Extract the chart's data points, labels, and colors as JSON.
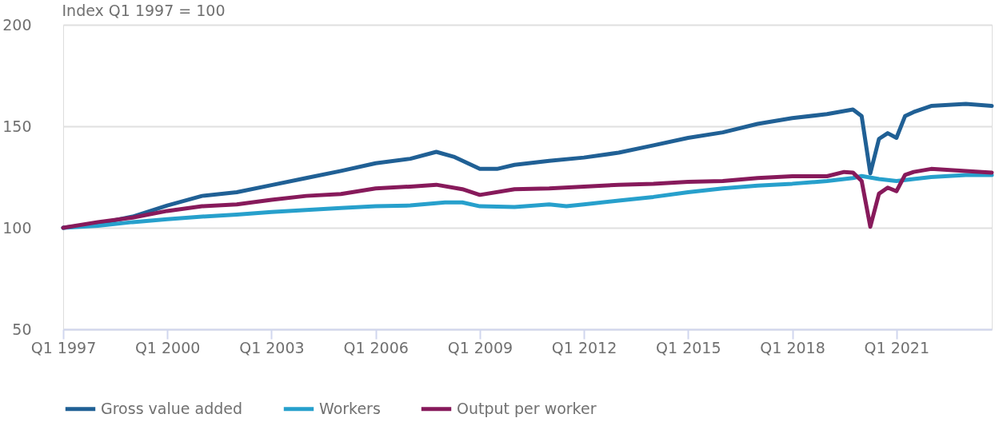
{
  "chart_data": {
    "type": "line",
    "ylabel": "Index Q1 1997 = 100",
    "xlim": [
      "1997-01",
      "2023-10"
    ],
    "ylim": [
      50,
      200
    ],
    "yticks": [
      50,
      100,
      150,
      200
    ],
    "xticks": [
      {
        "value": "1997-01",
        "label": "Q1 1997"
      },
      {
        "value": "2000-01",
        "label": "Q1 2000"
      },
      {
        "value": "2003-01",
        "label": "Q1 2003"
      },
      {
        "value": "2006-01",
        "label": "Q1 2006"
      },
      {
        "value": "2009-01",
        "label": "Q1 2009"
      },
      {
        "value": "2012-01",
        "label": "Q1 2012"
      },
      {
        "value": "2015-01",
        "label": "Q1 2015"
      },
      {
        "value": "2018-01",
        "label": "Q1 2018"
      },
      {
        "value": "2021-01",
        "label": "Q1 2021"
      }
    ],
    "grid": "y",
    "legend": "bottom",
    "series": [
      {
        "name": "Gross value added",
        "color": "#206095",
        "x": [
          "1997-01",
          "1998-01",
          "1999-01",
          "2000-01",
          "2001-01",
          "2002-01",
          "2003-01",
          "2004-01",
          "2005-01",
          "2006-01",
          "2007-01",
          "2007-10",
          "2008-04",
          "2009-01",
          "2009-07",
          "2010-01",
          "2011-01",
          "2012-01",
          "2013-01",
          "2014-01",
          "2015-01",
          "2016-01",
          "2017-01",
          "2018-01",
          "2019-01",
          "2019-10",
          "2020-01",
          "2020-04",
          "2020-07",
          "2020-10",
          "2021-01",
          "2021-04",
          "2021-07",
          "2022-01",
          "2023-01",
          "2023-10"
        ],
        "values": [
          100,
          102,
          105.5,
          111,
          115.7,
          117.5,
          121,
          124.5,
          128,
          131.8,
          134,
          137.4,
          135,
          129,
          129,
          131,
          133,
          134.6,
          137,
          140.6,
          144.3,
          147,
          151.2,
          154,
          156,
          158.3,
          155,
          126.8,
          143.8,
          146.6,
          144.3,
          155,
          157,
          160,
          161,
          160
        ]
      },
      {
        "name": "Workers",
        "color": "#27a0cc",
        "x": [
          "1997-01",
          "1998-01",
          "1999-01",
          "2000-01",
          "2001-01",
          "2002-01",
          "2003-01",
          "2004-01",
          "2005-01",
          "2006-01",
          "2007-01",
          "2008-01",
          "2008-07",
          "2009-01",
          "2010-01",
          "2011-01",
          "2011-07",
          "2012-01",
          "2013-01",
          "2014-01",
          "2015-01",
          "2016-01",
          "2017-01",
          "2018-01",
          "2019-01",
          "2019-10",
          "2020-01",
          "2020-07",
          "2021-01",
          "2021-07",
          "2022-01",
          "2023-01",
          "2023-10"
        ],
        "values": [
          100,
          101,
          102.8,
          104.2,
          105.5,
          106.5,
          107.8,
          108.8,
          109.7,
          110.6,
          111,
          112.5,
          112.5,
          110.6,
          110.2,
          111.5,
          110.6,
          111.5,
          113.4,
          115.2,
          117.5,
          119.4,
          120.8,
          121.7,
          123,
          124.5,
          125.5,
          124,
          123,
          124,
          125,
          126,
          126
        ]
      },
      {
        "name": "Output per worker",
        "color": "#871a5b",
        "x": [
          "1997-01",
          "1998-01",
          "1999-01",
          "2000-01",
          "2001-01",
          "2002-01",
          "2003-01",
          "2004-01",
          "2005-01",
          "2006-01",
          "2007-01",
          "2007-10",
          "2008-07",
          "2009-01",
          "2010-01",
          "2011-01",
          "2012-01",
          "2013-01",
          "2014-01",
          "2015-01",
          "2016-01",
          "2017-01",
          "2018-01",
          "2019-01",
          "2019-07",
          "2019-10",
          "2020-01",
          "2020-04",
          "2020-07",
          "2020-10",
          "2021-01",
          "2021-04",
          "2021-07",
          "2022-01",
          "2023-01",
          "2023-10"
        ],
        "values": [
          100,
          102.8,
          105,
          108.3,
          110.6,
          111.5,
          113.8,
          115.7,
          116.6,
          119.4,
          120.3,
          121.2,
          119,
          116.2,
          119,
          119.4,
          120.3,
          121.2,
          121.7,
          122.6,
          123,
          124.5,
          125.4,
          125.4,
          127.5,
          127.2,
          123,
          100.5,
          116.8,
          119.8,
          118,
          126,
          127.5,
          129,
          128,
          127.2
        ]
      }
    ]
  }
}
